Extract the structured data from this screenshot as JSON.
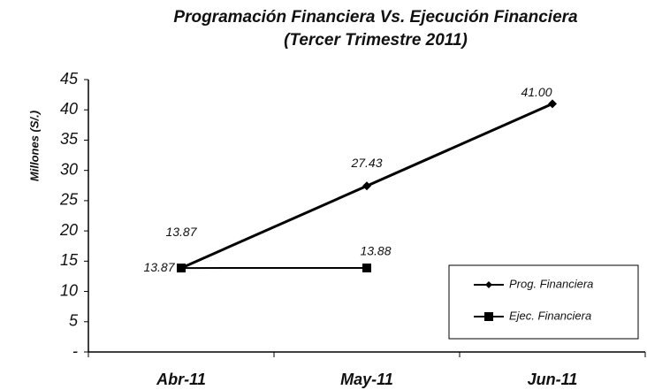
{
  "chart_data": {
    "type": "line",
    "title": "Programación Financiera Vs. Ejecución Financiera",
    "subtitle": "(Tercer Trimestre 2011)",
    "y_label": "Millones (S/.)",
    "categories": [
      "Abr-11",
      "May-11",
      "Jun-11"
    ],
    "series": [
      {
        "name": "Prog. Financiera",
        "color": "#000000",
        "marker": "diamond",
        "values": [
          13.87,
          27.43,
          41.0
        ],
        "value_labels": [
          "13.87",
          "27.43",
          "41.00"
        ]
      },
      {
        "name": "Ejec. Financiera",
        "color": "#000000",
        "marker": "square",
        "values": [
          13.87,
          13.88,
          null
        ],
        "value_labels": [
          "13.87",
          "13.88",
          null
        ]
      }
    ],
    "ylim": [
      0,
      45
    ],
    "yticks": [
      {
        "value": 0,
        "label": "-"
      },
      5,
      10,
      15,
      20,
      25,
      30,
      35,
      40,
      45
    ],
    "legend": "lower right"
  }
}
